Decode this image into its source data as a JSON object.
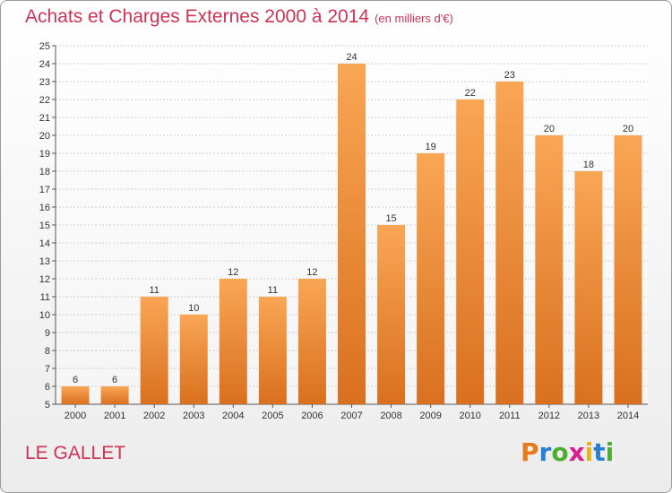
{
  "title": "Achats et Charges Externes 2000 à 2014",
  "unit": "(en milliers d'€)",
  "commune": "LE GALLET",
  "logo": {
    "letters": [
      "P",
      "r",
      "o",
      "x",
      "i",
      "t",
      "i"
    ],
    "colors": [
      "#e87a1e",
      "#2a7fd4",
      "#4caf32",
      "#d81f8a",
      "#e8b21e",
      "#2a7fd4",
      "#4caf32"
    ]
  },
  "colors": {
    "bar_top": "#f9a654",
    "bar_bottom": "#d9701f",
    "title": "#cc3355"
  },
  "chart_data": {
    "type": "bar",
    "categories": [
      "2000",
      "2001",
      "2002",
      "2003",
      "2004",
      "2005",
      "2006",
      "2007",
      "2008",
      "2009",
      "2010",
      "2011",
      "2012",
      "2013",
      "2014"
    ],
    "values": [
      6,
      6,
      11,
      10,
      12,
      11,
      12,
      24,
      15,
      19,
      22,
      23,
      20,
      18,
      20
    ],
    "ylim": [
      5,
      25
    ],
    "yticks": [
      5,
      6,
      7,
      8,
      9,
      10,
      11,
      12,
      13,
      14,
      15,
      16,
      17,
      18,
      19,
      20,
      21,
      22,
      23,
      24,
      25
    ],
    "grid": true
  }
}
